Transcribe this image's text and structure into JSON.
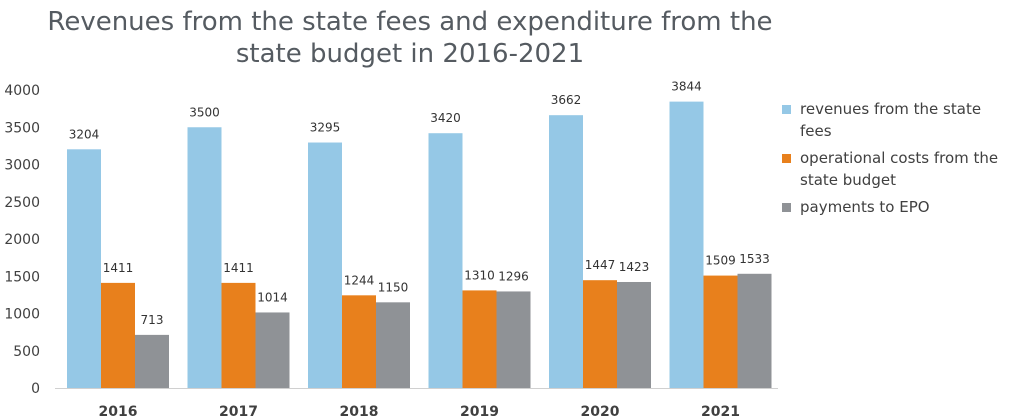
{
  "chart_data": {
    "type": "bar",
    "title": "Revenues from the state fees and expenditure from the state budget in 2016-2021",
    "categories": [
      "2016",
      "2017",
      "2018",
      "2019",
      "2020",
      "2021"
    ],
    "series": [
      {
        "name": "revenues from the state fees",
        "color": "#95c8e6",
        "values": [
          3204,
          3500,
          3295,
          3420,
          3662,
          3844
        ]
      },
      {
        "name": "operational costs from the state budget",
        "color": "#e8801c",
        "values": [
          1411,
          1411,
          1244,
          1310,
          1447,
          1509
        ]
      },
      {
        "name": "payments to EPO",
        "color": "#8f9296",
        "values": [
          713,
          1014,
          1150,
          1296,
          1423,
          1533
        ]
      }
    ],
    "ylim": [
      0,
      4000
    ],
    "yticks": [
      0,
      500,
      1000,
      1500,
      2000,
      2500,
      3000,
      3500,
      4000
    ],
    "grid": false,
    "legend_position": "right",
    "data_labels": [
      [
        "3204",
        "1411",
        "713"
      ],
      [
        "3500",
        "1411",
        "1014"
      ],
      [
        "3295",
        "1244",
        "1150"
      ],
      [
        "3420",
        "1310",
        "1296"
      ],
      [
        "3662",
        "1447",
        "1423"
      ],
      [
        "3844",
        "1509",
        "1533"
      ]
    ]
  }
}
